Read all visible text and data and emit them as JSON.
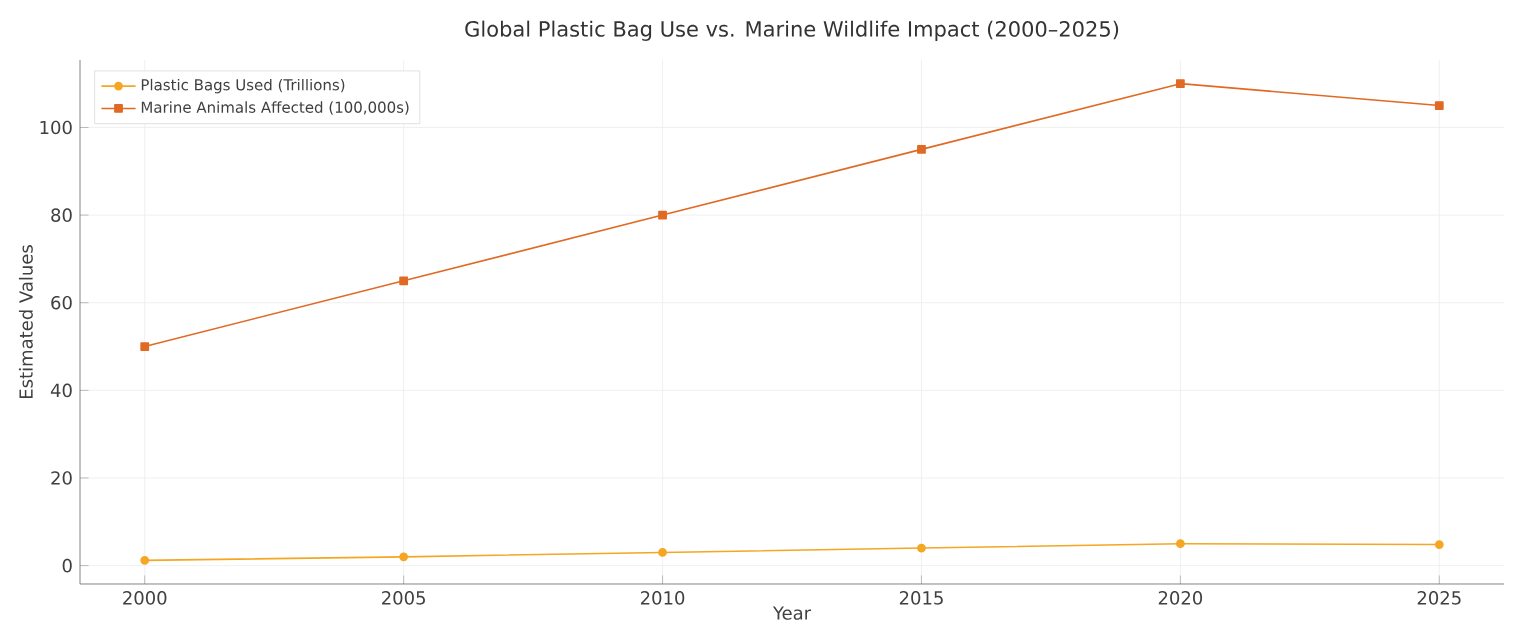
{
  "chart_data": {
    "type": "line",
    "title": "Global Plastic Bag Use vs. Marine Wildlife Impact (2000–2025)",
    "xlabel": "Year",
    "ylabel": "Estimated Values",
    "x": [
      2000,
      2005,
      2010,
      2015,
      2020,
      2025
    ],
    "series": [
      {
        "name": "Plastic Bags Used (Trillions)",
        "color": "#f5a623",
        "marker": "circle",
        "values": [
          1.2,
          2.0,
          3.0,
          4.0,
          5.0,
          4.8
        ]
      },
      {
        "name": "Marine Animals Affected (100,000s)",
        "color": "#e06a24",
        "marker": "square",
        "values": [
          50,
          65,
          80,
          95,
          110,
          105
        ]
      }
    ],
    "xlim": [
      1998.75,
      2026.25
    ],
    "xticks": [
      2000,
      2005,
      2010,
      2015,
      2020,
      2025
    ],
    "ylim": [
      -4.2,
      115.4
    ],
    "yticks": [
      0,
      20,
      40,
      60,
      80,
      100
    ],
    "grid": true,
    "legend": "top left",
    "line_style": "solid"
  }
}
